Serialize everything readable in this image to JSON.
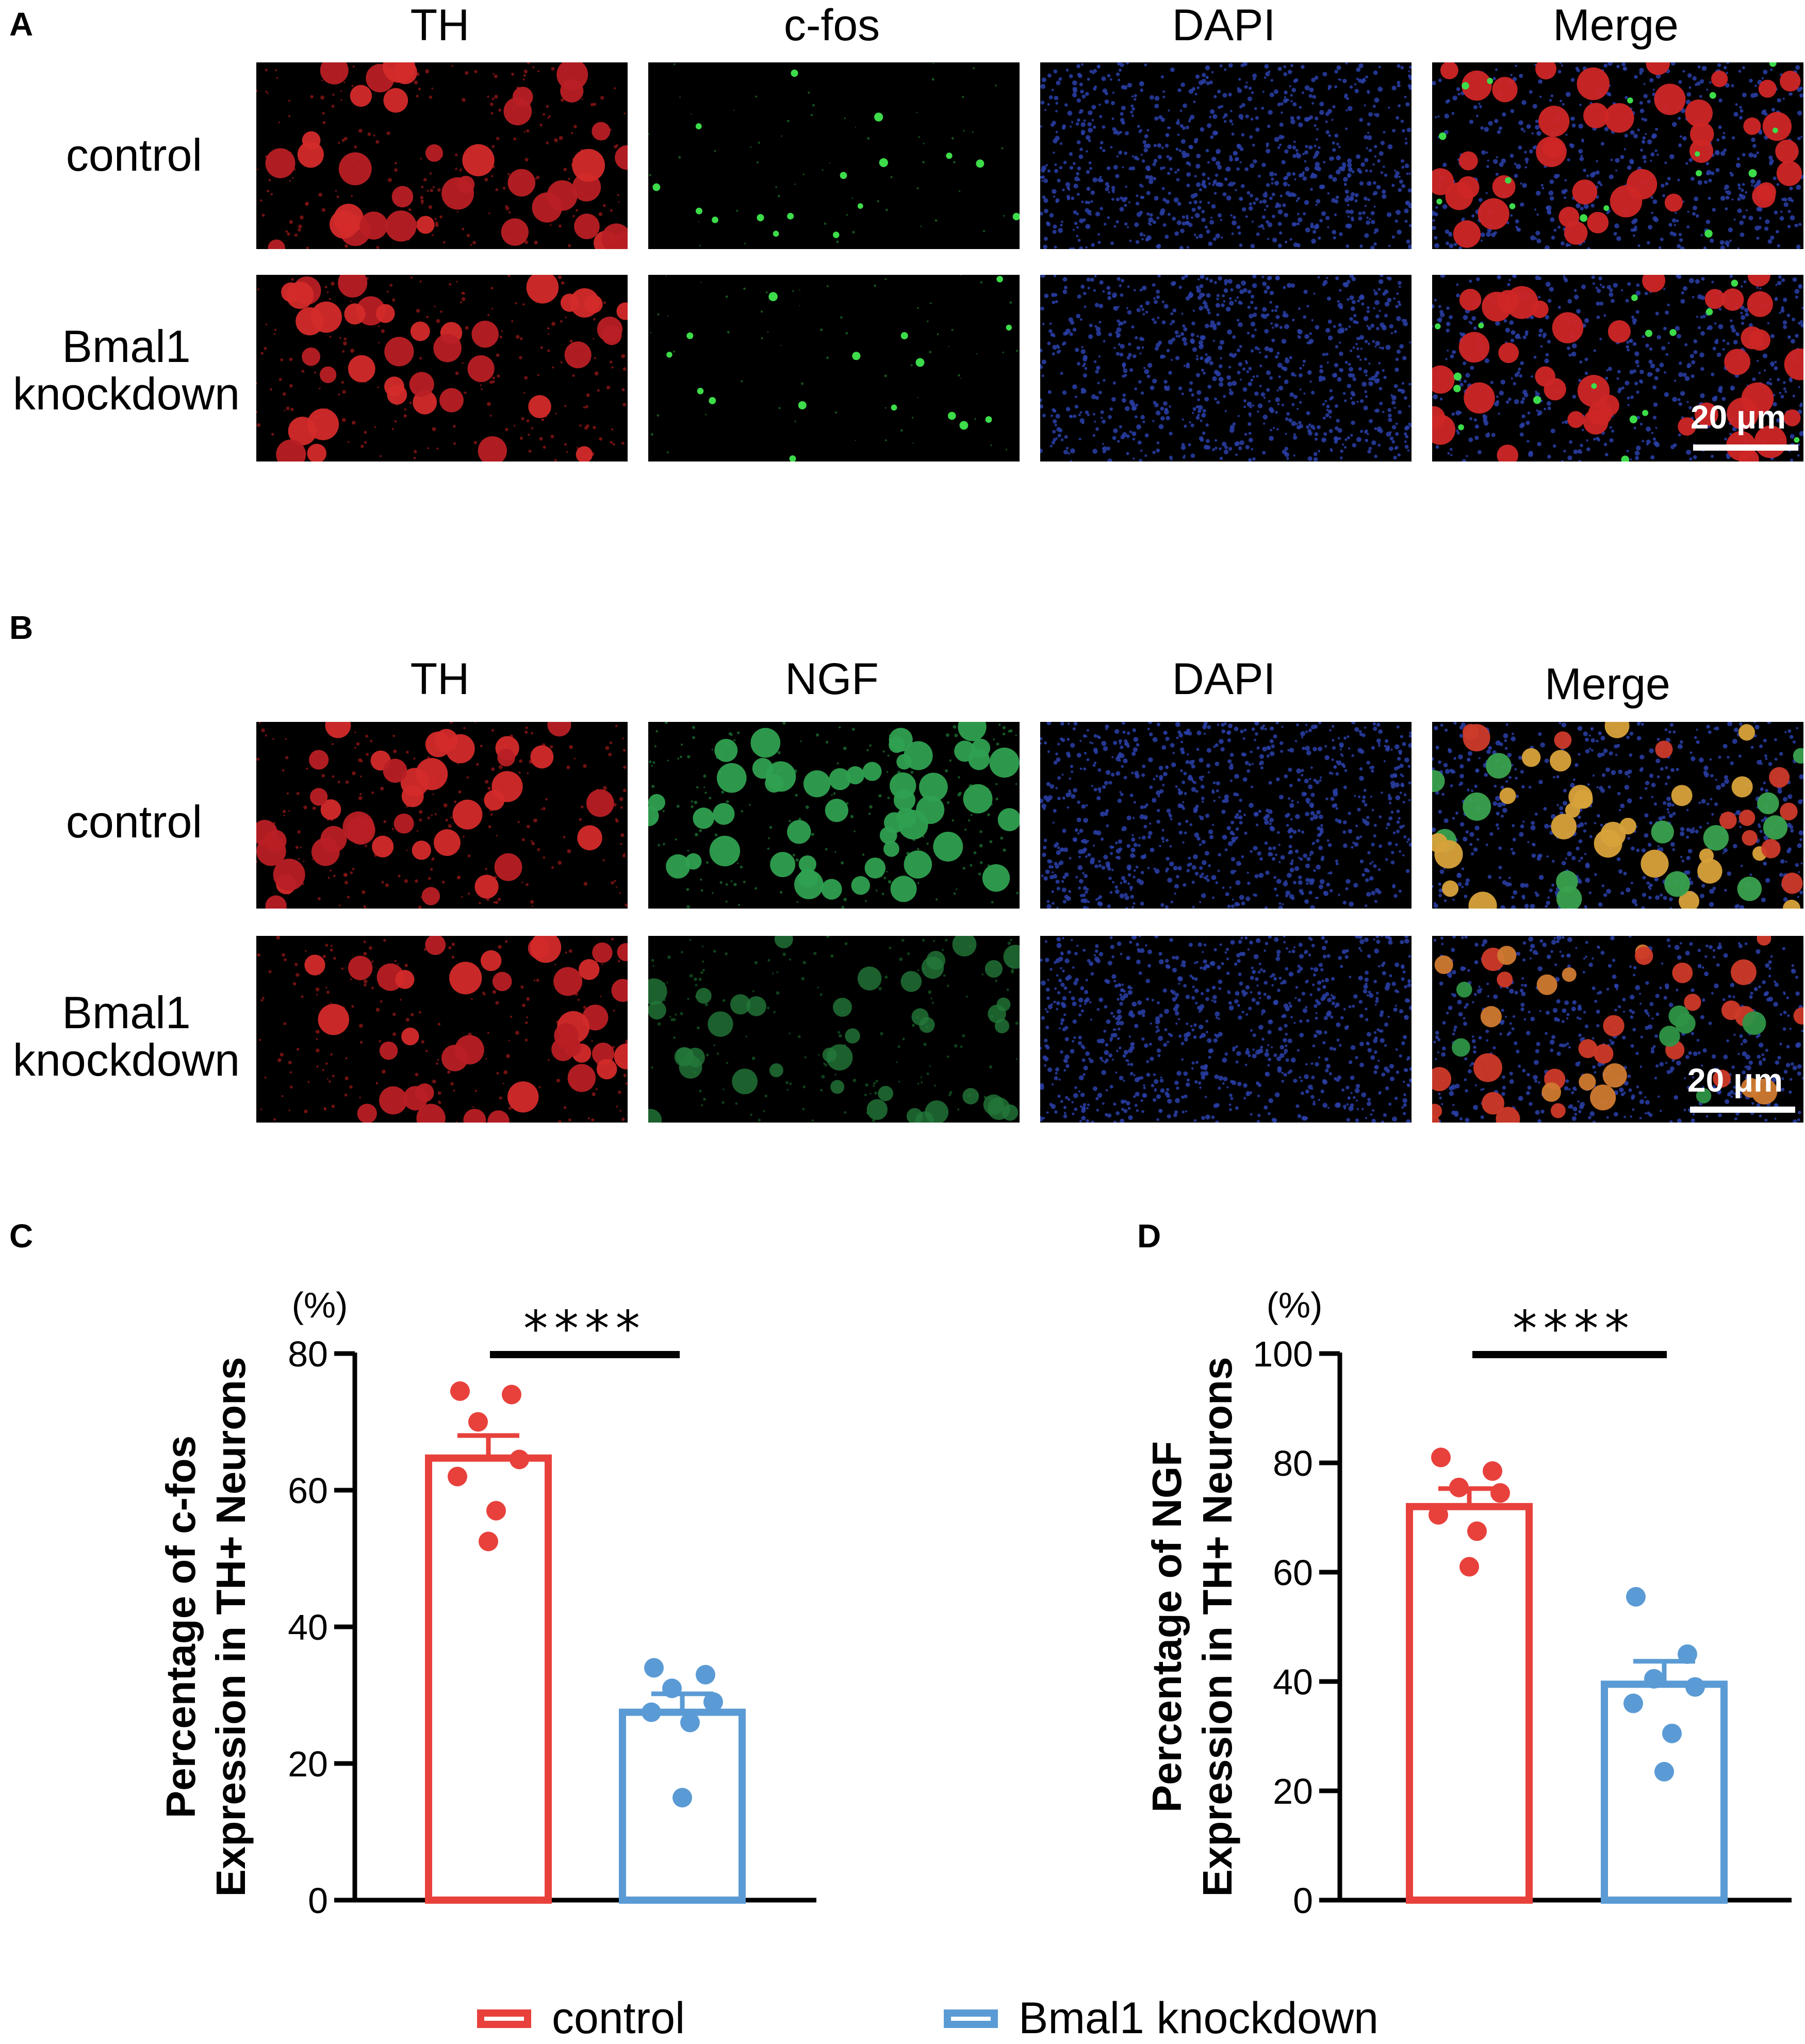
{
  "panel_a": {
    "letter": "A",
    "columns": [
      "TH",
      "c-fos",
      "DAPI",
      "Merge"
    ],
    "rows": [
      "control",
      "Bmal1\nknockdown"
    ],
    "scale_bar": "20 μm"
  },
  "panel_b": {
    "letter": "B",
    "columns": [
      "TH",
      "NGF",
      "DAPI",
      "Merge"
    ],
    "rows": [
      "control",
      "Bmal1\nknockdown"
    ],
    "scale_bar": "20 μm"
  },
  "colors": {
    "control": "#e8413c",
    "knockdown": "#5b9bd5"
  },
  "chart_data": [
    {
      "letter": "C",
      "type": "bar",
      "categories": [
        "control",
        "Bmal1 knockdown"
      ],
      "values": [
        64.7,
        27.5
      ],
      "sem": [
        3.3,
        2.7
      ],
      "points": [
        [
          74.5,
          74,
          70,
          64.5,
          62,
          57,
          52.5
        ],
        [
          34,
          33,
          31,
          29,
          27.5,
          26,
          15
        ]
      ],
      "ylabel": [
        "Percentage of c-fos",
        "Expression in TH+ Neurons"
      ],
      "unit": "(%)",
      "ylim": [
        0,
        80
      ],
      "yticks": [
        0,
        20,
        40,
        60,
        80
      ],
      "significance": "****"
    },
    {
      "letter": "D",
      "type": "bar",
      "categories": [
        "control",
        "Bmal1 knockdown"
      ],
      "values": [
        72,
        39.5
      ],
      "sem": [
        3.3,
        4.2
      ],
      "points": [
        [
          81,
          78.5,
          75.5,
          74.5,
          70.5,
          67.5,
          61
        ],
        [
          55.5,
          45,
          40.5,
          39,
          36,
          30.5,
          23.5
        ]
      ],
      "ylabel": [
        "Percentage of NGF",
        "Expression in TH+ Neurons"
      ],
      "unit": "(%)",
      "ylim": [
        0,
        100
      ],
      "yticks": [
        0,
        20,
        40,
        60,
        80,
        100
      ],
      "significance": "****"
    }
  ],
  "legend": {
    "items": [
      "control",
      "Bmal1 knockdown"
    ]
  }
}
